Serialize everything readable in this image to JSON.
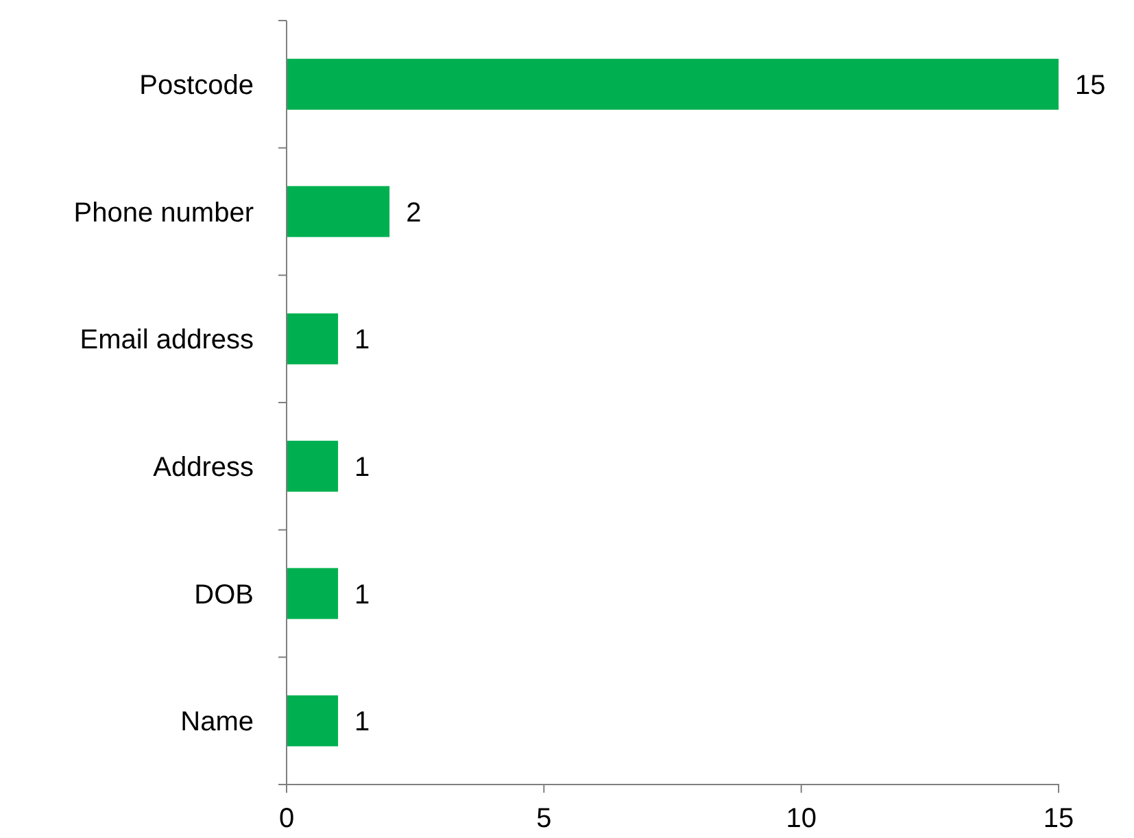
{
  "chart_data": {
    "type": "bar",
    "orientation": "horizontal",
    "categories": [
      "Postcode",
      "Phone number",
      "Email address",
      "Address",
      "DOB",
      "Name"
    ],
    "values": [
      15,
      2,
      1,
      1,
      1,
      1
    ],
    "color": "#00b050",
    "xlim": [
      0,
      15
    ],
    "xticks": [
      0,
      5,
      10,
      15
    ],
    "data_labels": true
  }
}
